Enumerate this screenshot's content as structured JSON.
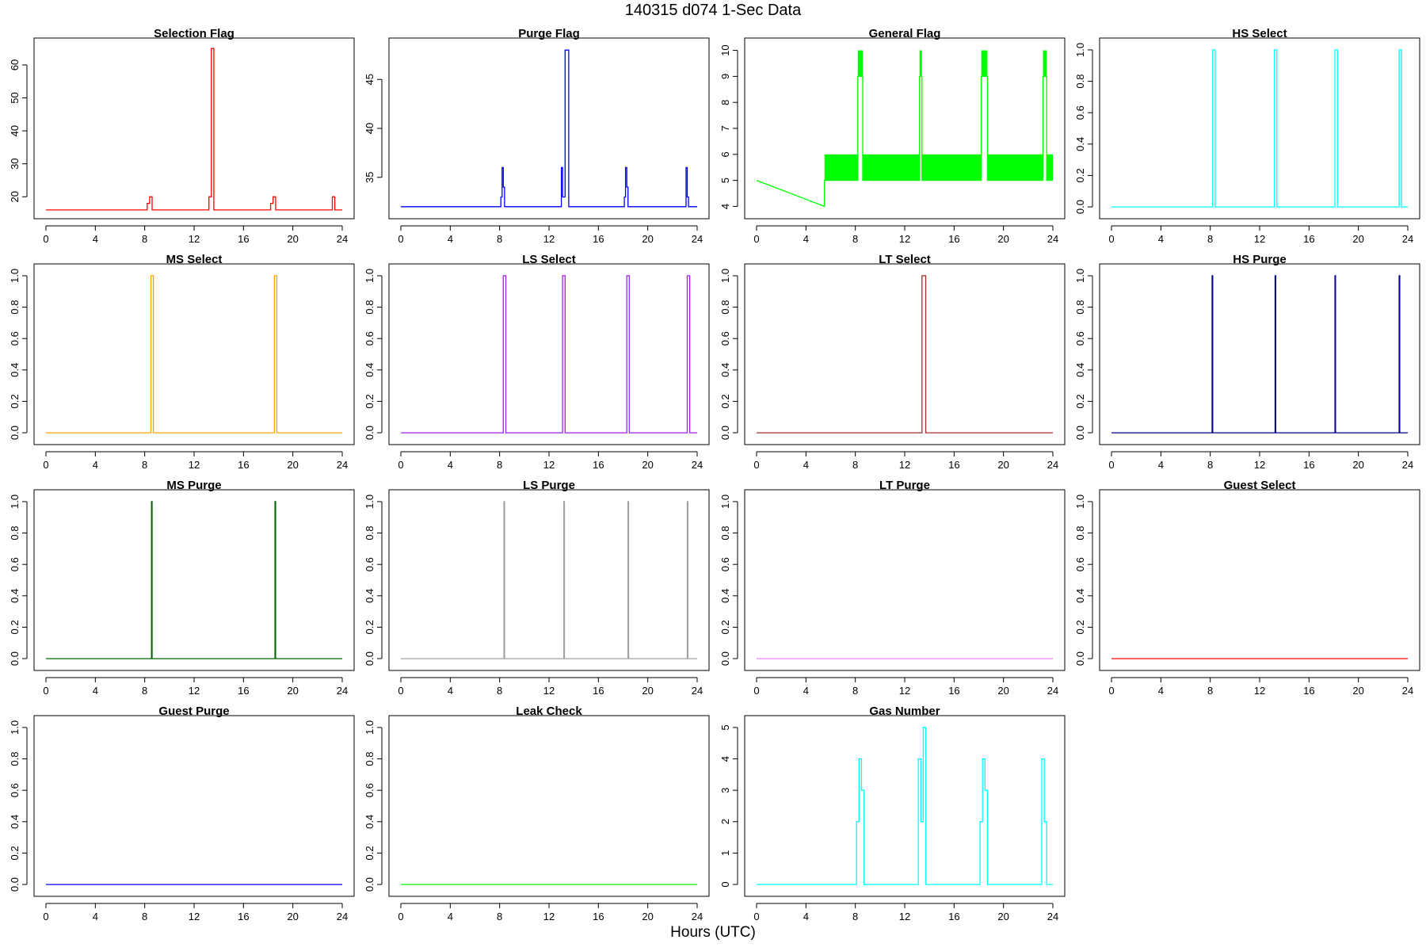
{
  "page": {
    "title": "140315   d074   1-Sec Data",
    "xlabel": "Hours (UTC)"
  },
  "chart_data": [
    {
      "type": "line",
      "title": "Selection Flag",
      "color": "#ff0000",
      "xlim": [
        0,
        24
      ],
      "ylim": [
        15.5,
        66
      ],
      "x_ticks": [
        0,
        4,
        8,
        12,
        16,
        20,
        24
      ],
      "y_ticks": [
        20,
        30,
        40,
        50,
        60
      ],
      "series": [
        {
          "x": [
            0,
            8.2,
            8.2,
            8.4,
            8.4,
            8.6,
            8.6,
            13.2,
            13.2,
            13.4,
            13.4,
            13.6,
            13.6,
            18.2,
            18.2,
            18.4,
            18.4,
            18.6,
            18.6,
            23.2,
            23.2,
            23.4,
            23.4,
            24
          ],
          "y": [
            16,
            16,
            18,
            18,
            20,
            20,
            16,
            16,
            20,
            20,
            65,
            65,
            16,
            16,
            18,
            18,
            20,
            20,
            16,
            16,
            20,
            20,
            16,
            16
          ]
        }
      ]
    },
    {
      "type": "line",
      "title": "Purge Flag",
      "color": "#0000ff",
      "xlim": [
        0,
        24
      ],
      "ylim": [
        31.5,
        48.5
      ],
      "x_ticks": [
        0,
        4,
        8,
        12,
        16,
        20,
        24
      ],
      "y_ticks": [
        35,
        40,
        45
      ],
      "series": [
        {
          "x": [
            0,
            8.1,
            8.1,
            8.2,
            8.2,
            8.3,
            8.3,
            8.4,
            8.4,
            13,
            13,
            13.1,
            13.1,
            13.3,
            13.3,
            13.6,
            13.6,
            18.1,
            18.1,
            18.2,
            18.2,
            18.3,
            18.3,
            18.4,
            18.4,
            23.1,
            23.1,
            23.2,
            23.2,
            23.3,
            23.3,
            24
          ],
          "y": [
            32,
            32,
            33,
            33,
            36,
            36,
            34,
            34,
            32,
            32,
            36,
            36,
            33,
            33,
            48,
            48,
            32,
            32,
            33,
            33,
            36,
            36,
            34,
            34,
            32,
            32,
            36,
            36,
            33,
            33,
            32,
            32
          ]
        }
      ]
    },
    {
      "type": "line",
      "title": "General Flag",
      "color": "#00ff00",
      "xlim": [
        0,
        24
      ],
      "ylim": [
        3.8,
        10.2
      ],
      "x_ticks": [
        0,
        4,
        8,
        12,
        16,
        20,
        24
      ],
      "y_ticks": [
        4,
        5,
        6,
        7,
        8,
        9,
        10
      ],
      "series": [
        {
          "x": [
            0,
            5.5,
            5.5,
            8.2,
            8.2,
            8.6,
            8.6,
            13.2,
            13.2,
            13.4,
            13.4,
            18.2,
            18.2,
            18.7,
            18.7,
            23.2,
            23.2,
            23.5,
            23.5,
            24
          ],
          "y": [
            5,
            4,
            5,
            5,
            9,
            9,
            5,
            5,
            9,
            9,
            5,
            5,
            9,
            9,
            5,
            5,
            9,
            9,
            5,
            5
          ]
        }
      ],
      "bands": [
        {
          "x0": 5.5,
          "x1": 8.2,
          "y0": 5,
          "y1": 6
        },
        {
          "x0": 8.6,
          "x1": 13.2,
          "y0": 5,
          "y1": 6
        },
        {
          "x0": 13.4,
          "x1": 18.2,
          "y0": 5,
          "y1": 6
        },
        {
          "x0": 18.7,
          "x1": 23.2,
          "y0": 5,
          "y1": 6
        },
        {
          "x0": 23.5,
          "x1": 24,
          "y0": 5,
          "y1": 6
        },
        {
          "x0": 8.2,
          "x1": 8.6,
          "y0": 9,
          "y1": 10
        },
        {
          "x0": 13.2,
          "x1": 13.4,
          "y0": 9,
          "y1": 10
        },
        {
          "x0": 18.2,
          "x1": 18.7,
          "y0": 9,
          "y1": 10
        },
        {
          "x0": 23.2,
          "x1": 23.5,
          "y0": 9,
          "y1": 10
        }
      ]
    },
    {
      "type": "line",
      "title": "HS Select",
      "color": "#00ffff",
      "xlim": [
        0,
        24
      ],
      "ylim": [
        -0.03,
        1.03
      ],
      "x_ticks": [
        0,
        4,
        8,
        12,
        16,
        20,
        24
      ],
      "y_ticks": [
        "0.0",
        "0.2",
        "0.4",
        "0.6",
        "0.8",
        "1.0"
      ],
      "series": [
        {
          "x": [
            0,
            8.2,
            8.2,
            8.4,
            8.4,
            13.2,
            13.2,
            13.4,
            13.4,
            18.1,
            18.1,
            18.3,
            18.3,
            23.3,
            23.3,
            23.5,
            23.5,
            24
          ],
          "y": [
            0,
            0,
            1,
            1,
            0,
            0,
            1,
            1,
            0,
            0,
            1,
            1,
            0,
            0,
            1,
            1,
            0,
            0
          ]
        }
      ]
    },
    {
      "type": "line",
      "title": "MS Select",
      "color": "#ffa500",
      "xlim": [
        0,
        24
      ],
      "ylim": [
        -0.03,
        1.03
      ],
      "x_ticks": [
        0,
        4,
        8,
        12,
        16,
        20,
        24
      ],
      "y_ticks": [
        "0.0",
        "0.2",
        "0.4",
        "0.6",
        "0.8",
        "1.0"
      ],
      "series": [
        {
          "x": [
            0,
            8.5,
            8.5,
            8.7,
            8.7,
            18.5,
            18.5,
            18.7,
            18.7,
            24
          ],
          "y": [
            0,
            0,
            1,
            1,
            0,
            0,
            1,
            1,
            0,
            0
          ]
        }
      ]
    },
    {
      "type": "line",
      "title": "LS Select",
      "color": "#a020f0",
      "xlim": [
        0,
        24
      ],
      "ylim": [
        -0.03,
        1.03
      ],
      "x_ticks": [
        0,
        4,
        8,
        12,
        16,
        20,
        24
      ],
      "y_ticks": [
        "0.0",
        "0.2",
        "0.4",
        "0.6",
        "0.8",
        "1.0"
      ],
      "series": [
        {
          "x": [
            0,
            8.3,
            8.3,
            8.5,
            8.5,
            13.1,
            13.1,
            13.3,
            13.3,
            18.3,
            18.3,
            18.5,
            18.5,
            23.2,
            23.2,
            23.4,
            23.4,
            24
          ],
          "y": [
            0,
            0,
            1,
            1,
            0,
            0,
            1,
            1,
            0,
            0,
            1,
            1,
            0,
            0,
            1,
            1,
            0,
            0
          ]
        }
      ]
    },
    {
      "type": "line",
      "title": "LT Select",
      "color": "#a52a2a",
      "xlim": [
        0,
        24
      ],
      "ylim": [
        -0.03,
        1.03
      ],
      "x_ticks": [
        0,
        4,
        8,
        12,
        16,
        20,
        24
      ],
      "y_ticks": [
        "0.0",
        "0.2",
        "0.4",
        "0.6",
        "0.8",
        "1.0"
      ],
      "series": [
        {
          "x": [
            0,
            13.4,
            13.4,
            13.7,
            13.7,
            24
          ],
          "y": [
            0,
            0,
            1,
            1,
            0,
            0
          ]
        }
      ]
    },
    {
      "type": "line",
      "title": "HS Purge",
      "color": "#00008b",
      "xlim": [
        0,
        24
      ],
      "ylim": [
        -0.03,
        1.03
      ],
      "x_ticks": [
        0,
        4,
        8,
        12,
        16,
        20,
        24
      ],
      "y_ticks": [
        "0.0",
        "0.2",
        "0.4",
        "0.6",
        "0.8",
        "1.0"
      ],
      "series": [
        {
          "x": [
            0,
            8.15,
            8.15,
            8.2,
            8.2,
            13.25,
            13.25,
            13.3,
            13.3,
            18.1,
            18.1,
            18.15,
            18.15,
            23.3,
            23.3,
            23.35,
            23.35,
            24
          ],
          "y": [
            0,
            0,
            1,
            1,
            0,
            0,
            1,
            1,
            0,
            0,
            1,
            1,
            0,
            0,
            1,
            1,
            0,
            0
          ]
        }
      ]
    },
    {
      "type": "line",
      "title": "MS Purge",
      "color": "#006400",
      "xlim": [
        0,
        24
      ],
      "ylim": [
        -0.03,
        1.03
      ],
      "x_ticks": [
        0,
        4,
        8,
        12,
        16,
        20,
        24
      ],
      "y_ticks": [
        "0.0",
        "0.2",
        "0.4",
        "0.6",
        "0.8",
        "1.0"
      ],
      "series": [
        {
          "x": [
            0,
            8.55,
            8.55,
            8.6,
            8.6,
            18.55,
            18.55,
            18.6,
            18.6,
            24
          ],
          "y": [
            0,
            0,
            1,
            1,
            0,
            0,
            1,
            1,
            0,
            0
          ]
        }
      ]
    },
    {
      "type": "line",
      "title": "LS Purge",
      "color": "#a0a0a0",
      "xlim": [
        0,
        24
      ],
      "ylim": [
        -0.03,
        1.03
      ],
      "x_ticks": [
        0,
        4,
        8,
        12,
        16,
        20,
        24
      ],
      "y_ticks": [
        "0.0",
        "0.2",
        "0.4",
        "0.6",
        "0.8",
        "1.0"
      ],
      "series": [
        {
          "x": [
            0,
            8.35,
            8.35,
            8.4,
            8.4,
            13.2,
            13.2,
            13.25,
            13.25,
            18.4,
            18.4,
            18.45,
            18.45,
            23.2,
            23.2,
            23.25,
            23.25,
            24
          ],
          "y": [
            0,
            0,
            1,
            1,
            0,
            0,
            1,
            1,
            0,
            0,
            1,
            1,
            0,
            0,
            1,
            1,
            0,
            0
          ]
        }
      ]
    },
    {
      "type": "line",
      "title": "LT Purge",
      "color": "#ee82ee",
      "xlim": [
        0,
        24
      ],
      "ylim": [
        -0.03,
        1.03
      ],
      "x_ticks": [
        0,
        4,
        8,
        12,
        16,
        20,
        24
      ],
      "y_ticks": [
        "0.0",
        "0.2",
        "0.4",
        "0.6",
        "0.8",
        "1.0"
      ],
      "series": [
        {
          "x": [
            0,
            24
          ],
          "y": [
            0,
            0
          ]
        }
      ]
    },
    {
      "type": "line",
      "title": "Guest Select",
      "color": "#ff0000",
      "xlim": [
        0,
        24
      ],
      "ylim": [
        -0.03,
        1.03
      ],
      "x_ticks": [
        0,
        4,
        8,
        12,
        16,
        20,
        24
      ],
      "y_ticks": [
        "0.0",
        "0.2",
        "0.4",
        "0.6",
        "0.8",
        "1.0"
      ],
      "series": [
        {
          "x": [
            0,
            24
          ],
          "y": [
            0,
            0
          ]
        }
      ]
    },
    {
      "type": "line",
      "title": "Guest Purge",
      "color": "#0000ff",
      "xlim": [
        0,
        24
      ],
      "ylim": [
        -0.03,
        1.03
      ],
      "x_ticks": [
        0,
        4,
        8,
        12,
        16,
        20,
        24
      ],
      "y_ticks": [
        "0.0",
        "0.2",
        "0.4",
        "0.6",
        "0.8",
        "1.0"
      ],
      "series": [
        {
          "x": [
            0,
            24
          ],
          "y": [
            0,
            0
          ]
        }
      ]
    },
    {
      "type": "line",
      "title": "Leak Check",
      "color": "#00ff00",
      "xlim": [
        0,
        24
      ],
      "ylim": [
        -0.03,
        1.03
      ],
      "x_ticks": [
        0,
        4,
        8,
        12,
        16,
        20,
        24
      ],
      "y_ticks": [
        "0.0",
        "0.2",
        "0.4",
        "0.6",
        "0.8",
        "1.0"
      ],
      "series": [
        {
          "x": [
            0,
            24
          ],
          "y": [
            0,
            0
          ]
        }
      ]
    },
    {
      "type": "line",
      "title": "Gas Number",
      "color": "#00ffff",
      "xlim": [
        0,
        24
      ],
      "ylim": [
        -0.15,
        5.15
      ],
      "x_ticks": [
        0,
        4,
        8,
        12,
        16,
        20,
        24
      ],
      "y_ticks": [
        0,
        1,
        2,
        3,
        4,
        5
      ],
      "series": [
        {
          "x": [
            0,
            8.1,
            8.1,
            8.3,
            8.3,
            8.5,
            8.5,
            8.7,
            8.7,
            13.1,
            13.1,
            13.3,
            13.3,
            13.5,
            13.5,
            13.7,
            13.7,
            18.1,
            18.1,
            18.3,
            18.3,
            18.5,
            18.5,
            18.7,
            18.7,
            23.1,
            23.1,
            23.3,
            23.3,
            23.5,
            23.5,
            24
          ],
          "y": [
            0,
            0,
            2,
            2,
            4,
            4,
            3,
            3,
            0,
            0,
            4,
            4,
            2,
            2,
            5,
            5,
            0,
            0,
            2,
            2,
            4,
            4,
            3,
            3,
            0,
            0,
            4,
            4,
            2,
            2,
            0,
            0
          ]
        }
      ]
    }
  ]
}
